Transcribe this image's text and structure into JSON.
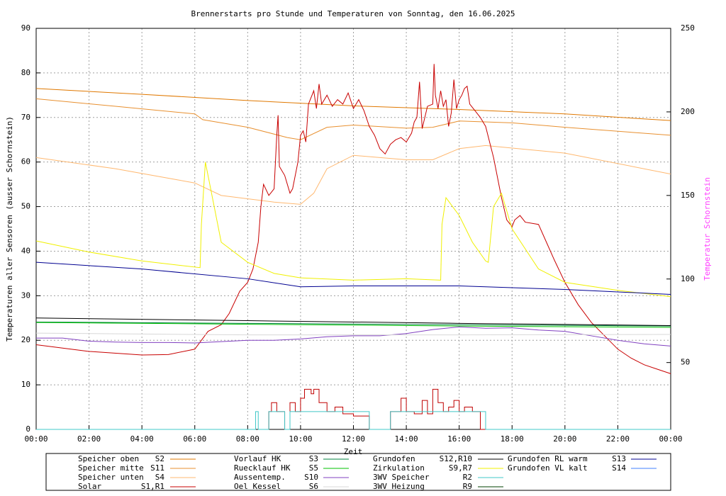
{
  "chart_data": {
    "type": "line",
    "title": "Brennerstarts pro Stunde und Temperaturen von Sonntag, den 16.06.2025",
    "x_label": "Zeit",
    "y_label": "Temperaturen aller Sensoren (ausser Schornstein)",
    "y2_label": "Temperatur Schornstein",
    "y2_label_color": "#ff40ff",
    "xlim": [
      0,
      24
    ],
    "xticks": [
      {
        "value": 0,
        "label": "00:00"
      },
      {
        "value": 2,
        "label": "02:00"
      },
      {
        "value": 4,
        "label": "04:00"
      },
      {
        "value": 6,
        "label": "06:00"
      },
      {
        "value": 8,
        "label": "08:00"
      },
      {
        "value": 10,
        "label": "10:00"
      },
      {
        "value": 12,
        "label": "12:00"
      },
      {
        "value": 14,
        "label": "14:00"
      },
      {
        "value": 16,
        "label": "16:00"
      },
      {
        "value": 18,
        "label": "18:00"
      },
      {
        "value": 20,
        "label": "20:00"
      },
      {
        "value": 22,
        "label": "22:00"
      },
      {
        "value": 24,
        "label": "00:00"
      }
    ],
    "ylim": [
      0,
      90
    ],
    "yticks": [
      0,
      10,
      20,
      30,
      40,
      50,
      60,
      70,
      80,
      90
    ],
    "y2lim": [
      10,
      250
    ],
    "y2ticks": [
      50,
      100,
      150,
      200,
      250
    ],
    "grid": true,
    "series": [
      {
        "name": "Speicher oben",
        "sensor": "S2",
        "color": "#e07800",
        "x": [
          0,
          4,
          8,
          12,
          16,
          20,
          24
        ],
        "values": [
          76.5,
          75.2,
          73.8,
          72.6,
          71.8,
          70.8,
          69.3
        ]
      },
      {
        "name": "Speicher mitte",
        "sensor": "S11",
        "color": "#e89030",
        "x": [
          0,
          3,
          6,
          6.3,
          8,
          9.5,
          10,
          11,
          12,
          14,
          15,
          16,
          18,
          20,
          24
        ],
        "values": [
          74.2,
          72.5,
          70.8,
          69.5,
          67.8,
          65.5,
          65,
          67.8,
          68.3,
          67.6,
          67.8,
          69.2,
          68.8,
          67.8,
          66
        ]
      },
      {
        "name": "Speicher unten",
        "sensor": "S4",
        "color": "#ffb870",
        "x": [
          0,
          3,
          6,
          7,
          9,
          10,
          10.5,
          11,
          12,
          14,
          15,
          16,
          17,
          20,
          24
        ],
        "values": [
          61,
          58.5,
          55.3,
          52.5,
          51,
          50.5,
          53,
          58.5,
          61.5,
          60.5,
          60.5,
          63,
          63.7,
          62,
          57.3
        ]
      },
      {
        "name": "Solar",
        "sensor": "S1,R1",
        "color": "#c80000",
        "x": [
          0,
          2,
          4,
          5,
          6,
          6.5,
          7,
          7.3,
          7.7,
          8,
          8.2,
          8.4,
          8.5,
          8.6,
          8.8,
          9,
          9.05,
          9.1,
          9.15,
          9.2,
          9.4,
          9.6,
          9.7,
          9.9,
          10,
          10.1,
          10.2,
          10.3,
          10.5,
          10.6,
          10.7,
          10.8,
          11,
          11.2,
          11.4,
          11.6,
          11.8,
          12,
          12.2,
          12.4,
          12.6,
          12.8,
          13,
          13.2,
          13.4,
          13.6,
          13.8,
          14,
          14.2,
          14.3,
          14.4,
          14.5,
          14.6,
          14.8,
          15,
          15.05,
          15.1,
          15.2,
          15.3,
          15.4,
          15.5,
          15.6,
          15.7,
          15.8,
          15.9,
          16,
          16.1,
          16.2,
          16.3,
          16.4,
          16.6,
          16.8,
          17,
          17.3,
          17.6,
          17.8,
          18,
          18.1,
          18.3,
          18.5,
          19,
          19.3,
          19.6,
          20,
          20.5,
          21,
          21.5,
          22,
          22.5,
          23,
          23.5,
          24
        ],
        "values": [
          19,
          17.5,
          16.7,
          16.8,
          18,
          22,
          23.5,
          26,
          31,
          33,
          36,
          42,
          50,
          55,
          52.5,
          54,
          60,
          66,
          70.5,
          59,
          57,
          53,
          54,
          60,
          66,
          67,
          64.5,
          73,
          76,
          72,
          77.5,
          73,
          75,
          72.5,
          74,
          73,
          75.5,
          72,
          74,
          71.5,
          68,
          66,
          63,
          61.8,
          64,
          65,
          65.5,
          64.5,
          66.5,
          69,
          70,
          78,
          67.5,
          72.5,
          73,
          82,
          75,
          72,
          76,
          72.5,
          74,
          68,
          71,
          78.5,
          72,
          74,
          75,
          76.5,
          77,
          73,
          71.5,
          70,
          68,
          61,
          52,
          47,
          45.5,
          47,
          48,
          46.5,
          46,
          42,
          38,
          33,
          28,
          24,
          21,
          18,
          16,
          14.5,
          13.5,
          12.5
        ]
      },
      {
        "name": "Vorlauf HK",
        "sensor": "S3",
        "color": "#008040",
        "x": [
          0,
          8,
          16,
          24
        ],
        "values": [
          24.1,
          23.8,
          23.5,
          23.2
        ]
      },
      {
        "name": "Ruecklauf HK",
        "sensor": "S5",
        "color": "#00c000",
        "x": [
          0,
          8,
          16,
          24
        ],
        "values": [
          24,
          23.6,
          23.2,
          22.9
        ]
      },
      {
        "name": "Aussentemp.",
        "sensor": "S10",
        "color": "#8040c0",
        "x": [
          0,
          1,
          2,
          3,
          4,
          5,
          6,
          7,
          8,
          9,
          10,
          11,
          12,
          13,
          14,
          15,
          16,
          17,
          18,
          19,
          20,
          21,
          22,
          23,
          24
        ],
        "values": [
          20.5,
          20.5,
          19.8,
          19.6,
          19.5,
          19.5,
          19.4,
          19.7,
          20,
          20,
          20.3,
          20.8,
          21,
          21,
          21.5,
          22.4,
          23,
          22.7,
          22.8,
          22.3,
          22,
          21,
          20,
          19.2,
          18.7
        ]
      },
      {
        "name": "Oel Kessel",
        "sensor": "S6",
        "color": "#d8d8d8",
        "x": [
          0,
          8,
          16,
          24
        ],
        "values": [
          21.6,
          21.2,
          21.2,
          21.3
        ]
      },
      {
        "name": "Grundofen",
        "sensor": "S12,R10",
        "color": "#000000",
        "x": [
          0,
          8,
          16,
          24
        ],
        "values": [
          25,
          24.4,
          23.8,
          23.3
        ]
      },
      {
        "name": "Zirkulation",
        "sensor": "S9,R7",
        "color": "#f0f000",
        "x": [
          0,
          2,
          4,
          6.2,
          6.25,
          6.4,
          7,
          8,
          9,
          10,
          12,
          14,
          15.3,
          15.35,
          15.5,
          16,
          16.5,
          17,
          17.1,
          17.3,
          17.6,
          18,
          19,
          20,
          22,
          24
        ],
        "values": [
          42.3,
          39.8,
          37.8,
          36.3,
          46,
          60,
          42,
          37.5,
          35,
          34,
          33.5,
          33.8,
          33.5,
          46,
          52,
          48,
          42,
          37.8,
          37.5,
          50,
          53,
          45,
          36,
          33,
          31.2,
          29.8
        ]
      },
      {
        "name": "3WV Speicher",
        "sensor": "R2",
        "color": "#40c8c8",
        "step": true,
        "x": [
          0,
          8.3,
          8.4,
          8.8,
          9.4,
          9.6,
          12.6,
          13.4,
          17,
          24
        ],
        "values": [
          0,
          4,
          0,
          4,
          0,
          4,
          0,
          4,
          0,
          0
        ]
      },
      {
        "name": "3WV Heizung",
        "sensor": "R9",
        "color": "#004000",
        "x": [],
        "values": []
      },
      {
        "name": "Grundofen RL warm",
        "sensor": "S13",
        "color": "#000090",
        "x": [
          0,
          4,
          8,
          10,
          12,
          16,
          20,
          24
        ],
        "values": [
          37.5,
          36,
          33.8,
          32,
          32.2,
          32.2,
          31.4,
          30.3
        ]
      },
      {
        "name": "Grundofen VL kalt",
        "sensor": "S14",
        "color": "#4080ff",
        "x": [],
        "values": []
      }
    ],
    "brennerstarts": {
      "color": "#c00000",
      "step": true,
      "x": [
        8.4,
        8.8,
        8.9,
        9.1,
        9.4,
        9.6,
        9.8,
        10.0,
        10.15,
        10.4,
        10.5,
        10.7,
        11,
        11.3,
        11.6,
        12,
        12.6,
        13.4,
        13.8,
        14,
        14.3,
        14.6,
        14.8,
        15,
        15.2,
        15.4,
        15.6,
        15.8,
        16,
        16.2,
        16.5,
        16.8,
        17
      ],
      "values": [
        0,
        4,
        6,
        4,
        0,
        6,
        4,
        7,
        9,
        8,
        9,
        6,
        4,
        5,
        3.5,
        3,
        0,
        4,
        7,
        4,
        3.5,
        6.5,
        3.5,
        9,
        6,
        4,
        5,
        6.5,
        4,
        5,
        4,
        0,
        0
      ]
    }
  }
}
